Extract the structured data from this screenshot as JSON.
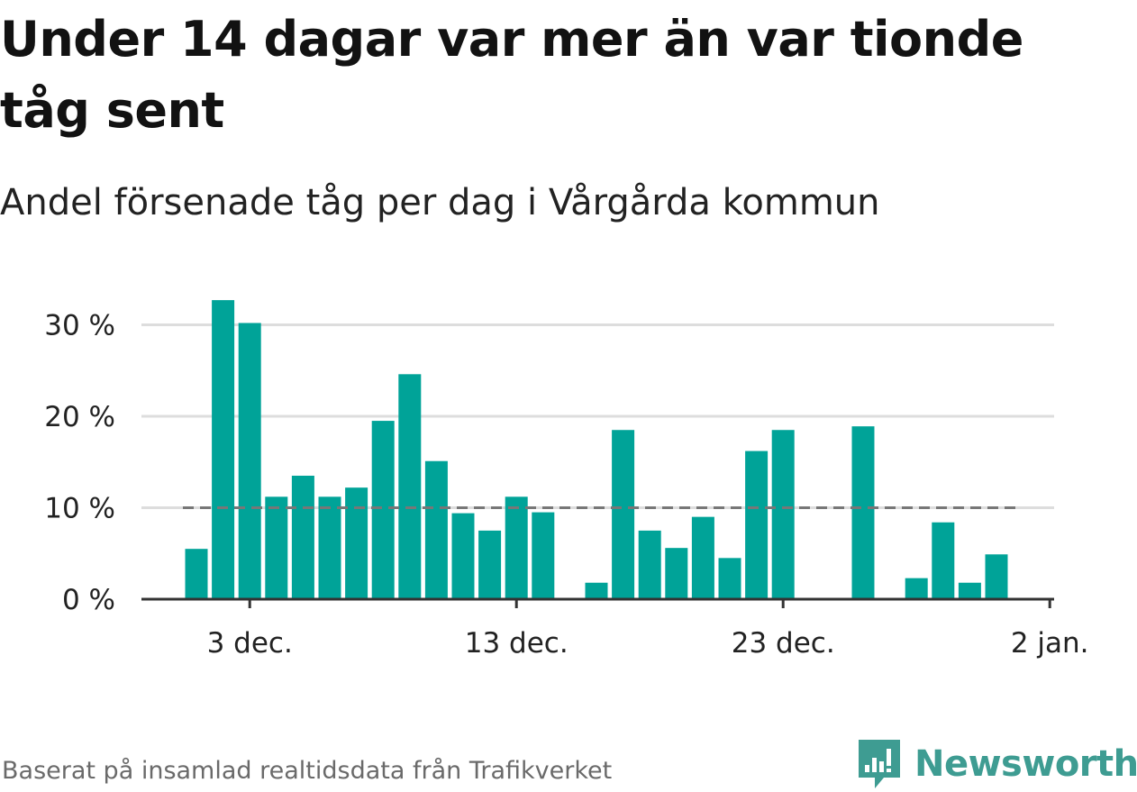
{
  "title": "Under 14 dagar var mer än var tionde tåg sent",
  "subtitle": "Andel försenade tåg per dag i Vårgårda kommun",
  "source": "Baserat på insamlad realtidsdata från Trafikverket",
  "brand": "Newsworthy",
  "colors": {
    "bar": "#00a398",
    "grid": "#dddddd",
    "axis": "#333333",
    "reference": "#777777",
    "brand": "#3e9c92"
  },
  "chart_data": {
    "type": "bar",
    "categories": [
      "1 dec.",
      "2 dec.",
      "3 dec.",
      "4 dec.",
      "5 dec.",
      "6 dec.",
      "7 dec.",
      "8 dec.",
      "9 dec.",
      "10 dec.",
      "11 dec.",
      "12 dec.",
      "13 dec.",
      "14 dec.",
      "15 dec.",
      "16 dec.",
      "17 dec.",
      "18 dec.",
      "19 dec.",
      "20 dec.",
      "21 dec.",
      "22 dec.",
      "23 dec.",
      "24 dec.",
      "25 dec.",
      "26 dec.",
      "27 dec.",
      "28 dec.",
      "29 dec.",
      "30 dec.",
      "31 dec."
    ],
    "values": [
      5.5,
      32.7,
      30.2,
      11.2,
      13.5,
      11.2,
      12.2,
      19.5,
      24.6,
      15.1,
      9.4,
      7.5,
      11.2,
      9.5,
      0,
      1.8,
      18.5,
      7.5,
      5.6,
      9.0,
      4.5,
      16.2,
      18.5,
      0,
      0,
      18.9,
      0,
      2.3,
      8.4,
      1.8,
      4.9
    ],
    "ylim": [
      0,
      33
    ],
    "yticks": [
      0,
      10,
      20,
      30
    ],
    "ytick_labels": [
      "0 %",
      "10 %",
      "20 %",
      "30 %"
    ],
    "xtick_labels": [
      "3 dec.",
      "13 dec.",
      "23 dec.",
      "2 jan."
    ],
    "xtick_index": [
      2,
      12,
      22,
      32
    ],
    "reference_line": 10,
    "grid": true
  }
}
